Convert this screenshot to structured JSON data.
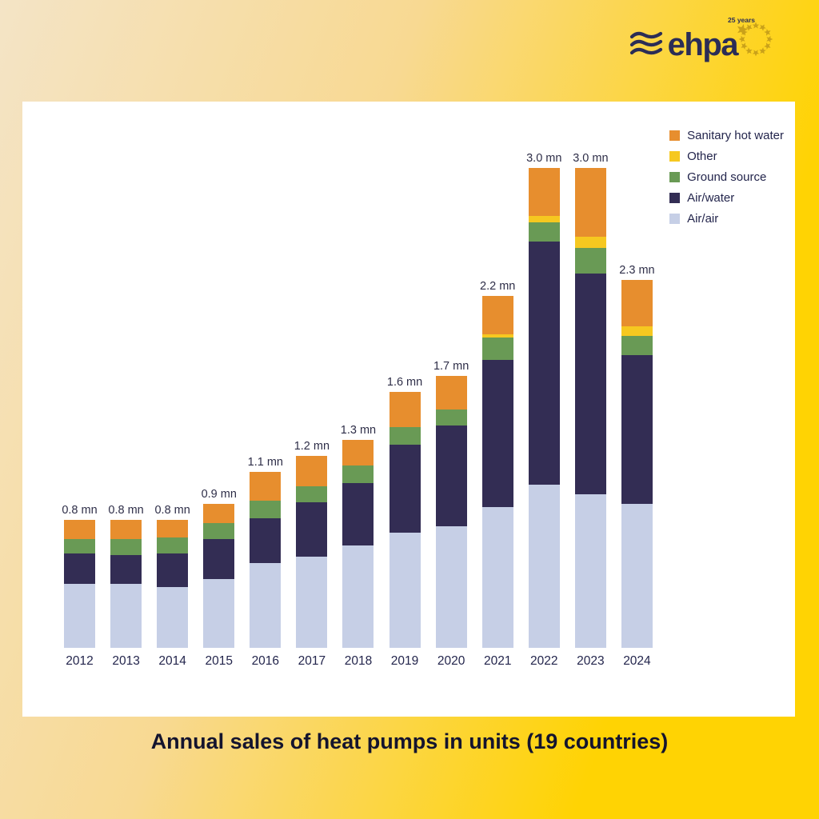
{
  "logo": {
    "brand": "ehpa",
    "anniversary": "25 years"
  },
  "chart_data": {
    "type": "stacked-bar",
    "title": "Annual sales of heat pumps in units (19 countries)",
    "unit": "mn (million units)",
    "categories": [
      "2012",
      "2013",
      "2014",
      "2015",
      "2016",
      "2017",
      "2018",
      "2019",
      "2020",
      "2021",
      "2022",
      "2023",
      "2024"
    ],
    "series": [
      {
        "name": "Air/air",
        "color": "#c6cfe6",
        "values": [
          0.4,
          0.4,
          0.38,
          0.43,
          0.53,
          0.57,
          0.64,
          0.72,
          0.76,
          0.88,
          1.02,
          0.96,
          0.9
        ]
      },
      {
        "name": "Air/water",
        "color": "#332d54",
        "values": [
          0.19,
          0.18,
          0.21,
          0.25,
          0.28,
          0.34,
          0.39,
          0.55,
          0.63,
          0.92,
          1.52,
          1.38,
          0.93
        ]
      },
      {
        "name": "Ground source",
        "color": "#699a55",
        "values": [
          0.09,
          0.1,
          0.1,
          0.1,
          0.11,
          0.1,
          0.11,
          0.11,
          0.1,
          0.14,
          0.12,
          0.16,
          0.12
        ]
      },
      {
        "name": "Other",
        "color": "#f6c820",
        "values": [
          0.0,
          0.0,
          0.0,
          0.0,
          0.0,
          0.0,
          0.0,
          0.0,
          0.0,
          0.02,
          0.04,
          0.07,
          0.06
        ]
      },
      {
        "name": "Sanitary hot water",
        "color": "#e78e2e",
        "values": [
          0.12,
          0.12,
          0.11,
          0.12,
          0.18,
          0.19,
          0.16,
          0.22,
          0.21,
          0.24,
          0.3,
          0.43,
          0.29
        ]
      }
    ],
    "totals_labels": [
      "0.8 mn",
      "0.8 mn",
      "0.8 mn",
      "0.9 mn",
      "1.1 mn",
      "1.2 mn",
      "1.3 mn",
      "1.6 mn",
      "1.7 mn",
      "2.2 mn",
      "3.0 mn",
      "3.0 mn",
      "2.3 mn"
    ],
    "stack_order_bottom_to_top": [
      "Air/air",
      "Air/water",
      "Ground source",
      "Other",
      "Sanitary hot water"
    ],
    "legend_position": "top-right",
    "grid": false,
    "ylim": [
      0,
      3.2
    ]
  }
}
